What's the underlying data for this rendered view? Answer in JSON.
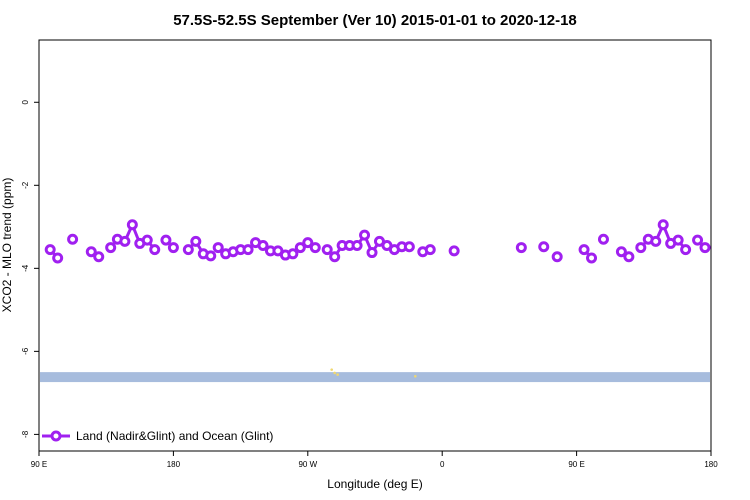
{
  "chart_data": {
    "type": "line",
    "title": "57.5S-52.5S September (Ver 10)   2015-01-01 to 2020-12-18",
    "xlabel": "Longitude (deg E)",
    "ylabel": "XCO2 - MLO trend (ppm)",
    "x_tick_labels": [
      "90 E",
      "180",
      "90 W",
      "0",
      "90 E",
      "180"
    ],
    "x_tick_values": [
      90,
      180,
      270,
      360,
      450,
      540
    ],
    "xlim": [
      90,
      540
    ],
    "y_tick_labels": [
      "0",
      "-2",
      "-4",
      "-6",
      "-8"
    ],
    "y_tick_values": [
      0,
      -2,
      -4,
      -6,
      -8
    ],
    "ylim": [
      -8.4,
      1.5
    ],
    "grid": false,
    "legend_position": "bottom-left",
    "colors": {
      "series": "#a020f0",
      "ocean": "#a7bcdd",
      "land": "#f0d870"
    },
    "series": [
      {
        "name": "Land (Nadir&Glint) and Ocean (Glint)",
        "segments": [
          [
            [
              97.5,
              -3.55
            ],
            [
              102.5,
              -3.75
            ]
          ],
          [
            [
              112.5,
              -3.3
            ]
          ],
          [
            [
              125,
              -3.6
            ],
            [
              130,
              -3.72
            ]
          ],
          [
            [
              138,
              -3.5
            ],
            [
              142.5,
              -3.3
            ],
            [
              147.5,
              -3.35
            ],
            [
              152.5,
              -2.95
            ],
            [
              157.5,
              -3.4
            ],
            [
              162.5,
              -3.32
            ],
            [
              167.5,
              -3.55
            ]
          ],
          [
            [
              175,
              -3.32
            ],
            [
              180,
              -3.5
            ]
          ],
          [
            [
              190,
              -3.55
            ],
            [
              195,
              -3.35
            ],
            [
              200,
              -3.65
            ],
            [
              205,
              -3.7
            ]
          ],
          [
            [
              210,
              -3.5
            ],
            [
              215,
              -3.65
            ],
            [
              220,
              -3.6
            ],
            [
              225,
              -3.55
            ],
            [
              230,
              -3.55
            ],
            [
              235,
              -3.38
            ],
            [
              240,
              -3.45
            ],
            [
              245,
              -3.58
            ],
            [
              250,
              -3.58
            ],
            [
              255,
              -3.68
            ],
            [
              260,
              -3.65
            ],
            [
              265,
              -3.5
            ],
            [
              270,
              -3.38
            ],
            [
              275,
              -3.5
            ]
          ],
          [
            [
              283,
              -3.55
            ],
            [
              288,
              -3.72
            ],
            [
              293,
              -3.45
            ],
            [
              298,
              -3.45
            ],
            [
              303,
              -3.45
            ],
            [
              308,
              -3.2
            ],
            [
              313,
              -3.62
            ],
            [
              318,
              -3.35
            ],
            [
              323,
              -3.45
            ],
            [
              328,
              -3.55
            ],
            [
              333,
              -3.48
            ],
            [
              338,
              -3.48
            ]
          ],
          [
            [
              347,
              -3.6
            ],
            [
              352,
              -3.55
            ]
          ],
          [
            [
              368,
              -3.58
            ]
          ],
          [
            [
              413,
              -3.5
            ]
          ],
          [
            [
              428,
              -3.48
            ]
          ],
          [
            [
              437,
              -3.72
            ]
          ],
          [
            [
              455,
              -3.55
            ],
            [
              460,
              -3.75
            ]
          ],
          [
            [
              468,
              -3.3
            ]
          ],
          [
            [
              480,
              -3.6
            ],
            [
              485,
              -3.72
            ]
          ],
          [
            [
              493,
              -3.5
            ],
            [
              498,
              -3.3
            ],
            [
              503,
              -3.35
            ],
            [
              508,
              -2.95
            ],
            [
              513,
              -3.4
            ],
            [
              518,
              -3.32
            ],
            [
              523,
              -3.55
            ]
          ],
          [
            [
              531,
              -3.32
            ],
            [
              536,
              -3.5
            ]
          ]
        ]
      }
    ],
    "ocean_band_y": [
      -6.74,
      -6.5
    ],
    "land_marks": [
      [
        286,
        -6.44
      ],
      [
        288,
        -6.52
      ],
      [
        290,
        -6.56
      ],
      [
        342,
        -6.6
      ]
    ]
  }
}
